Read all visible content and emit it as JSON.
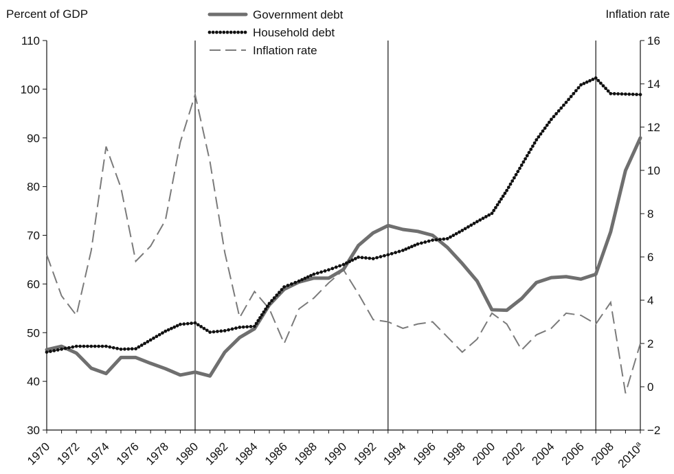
{
  "chart_data": {
    "type": "line",
    "title": "",
    "left_axis": {
      "title": "Percent of GDP",
      "range": [
        30,
        110
      ],
      "ticks": [
        "30",
        "40",
        "50",
        "60",
        "70",
        "80",
        "90",
        "100",
        "110"
      ]
    },
    "right_axis": {
      "title": "Inflation rate",
      "range": [
        -2,
        16
      ],
      "ticks": [
        "−2",
        "0",
        "2",
        "4",
        "6",
        "8",
        "10",
        "12",
        "14",
        "16"
      ]
    },
    "x_range": [
      1970,
      2010
    ],
    "x_ticks": [
      {
        "year": 1970,
        "label": "1970"
      },
      {
        "year": 1972,
        "label": "1972"
      },
      {
        "year": 1974,
        "label": "1974"
      },
      {
        "year": 1976,
        "label": "1976"
      },
      {
        "year": 1978,
        "label": "1978"
      },
      {
        "year": 1980,
        "label": "1980"
      },
      {
        "year": 1982,
        "label": "1982"
      },
      {
        "year": 1984,
        "label": "1984"
      },
      {
        "year": 1986,
        "label": "1986"
      },
      {
        "year": 1988,
        "label": "1988"
      },
      {
        "year": 1990,
        "label": "1990"
      },
      {
        "year": 1992,
        "label": "1992"
      },
      {
        "year": 1994,
        "label": "1994"
      },
      {
        "year": 1996,
        "label": "1996"
      },
      {
        "year": 1998,
        "label": "1998"
      },
      {
        "year": 2000,
        "label": "2000"
      },
      {
        "year": 2002,
        "label": "2002"
      },
      {
        "year": 2004,
        "label": "2004"
      },
      {
        "year": 2006,
        "label": "2006"
      },
      {
        "year": 2008,
        "label": "2008"
      },
      {
        "year": 2010,
        "label": "2010",
        "superscript": "a"
      }
    ],
    "vertical_lines": [
      1980,
      1993,
      2007
    ],
    "legend_position": "top-center",
    "grid": false,
    "series": [
      {
        "name": "Government debt",
        "axis": "left",
        "style": "thick-solid",
        "color": "#6f6f6f",
        "x": [
          1970,
          1971,
          1972,
          1973,
          1974,
          1975,
          1976,
          1977,
          1978,
          1979,
          1980,
          1981,
          1982,
          1983,
          1984,
          1985,
          1986,
          1987,
          1988,
          1989,
          1990,
          1991,
          1992,
          1993,
          1994,
          1995,
          1996,
          1997,
          1998,
          1999,
          2000,
          2001,
          2002,
          2003,
          2004,
          2005,
          2006,
          2007,
          2008,
          2009,
          2010
        ],
        "values": [
          46.5,
          47.2,
          45.8,
          42.7,
          41.6,
          44.9,
          44.9,
          43.7,
          42.6,
          41.3,
          41.9,
          41.1,
          46.0,
          49.0,
          50.8,
          55.7,
          58.9,
          60.4,
          61.2,
          61.2,
          63.0,
          67.9,
          70.5,
          72.0,
          71.2,
          70.8,
          70.0,
          67.5,
          64.2,
          60.6,
          54.7,
          54.6,
          57.0,
          60.3,
          61.3,
          61.5,
          61.0,
          62.0,
          70.7,
          83.3,
          90.0
        ]
      },
      {
        "name": "Household debt",
        "axis": "left",
        "style": "dotted",
        "color": "#111111",
        "x": [
          1970,
          1971,
          1972,
          1973,
          1974,
          1975,
          1976,
          1977,
          1978,
          1979,
          1980,
          1981,
          1982,
          1983,
          1984,
          1985,
          1986,
          1987,
          1988,
          1989,
          1990,
          1991,
          1992,
          1993,
          1994,
          1995,
          1996,
          1997,
          1998,
          1999,
          2000,
          2001,
          2002,
          2003,
          2004,
          2005,
          2006,
          2007,
          2008,
          2009,
          2010
        ],
        "values": [
          46.0,
          46.6,
          47.2,
          47.2,
          47.2,
          46.6,
          46.7,
          48.5,
          50.3,
          51.7,
          52.0,
          50.1,
          50.4,
          51.1,
          51.3,
          56.0,
          59.4,
          60.6,
          62.0,
          62.9,
          64.0,
          65.5,
          65.2,
          66.0,
          66.9,
          68.2,
          69.0,
          69.3,
          71.0,
          72.8,
          74.5,
          79.2,
          84.4,
          89.6,
          93.8,
          97.3,
          100.9,
          102.3,
          99.1,
          99.0,
          98.9
        ]
      },
      {
        "name": "Inflation rate",
        "axis": "right",
        "style": "dashed",
        "color": "#7a7a7a",
        "x": [
          1970,
          1971,
          1972,
          1973,
          1974,
          1975,
          1976,
          1977,
          1978,
          1979,
          1980,
          1981,
          1982,
          1983,
          1984,
          1985,
          1986,
          1987,
          1988,
          1989,
          1990,
          1991,
          1992,
          1993,
          1994,
          1995,
          1996,
          1997,
          1998,
          1999,
          2000,
          2001,
          2002,
          2003,
          2004,
          2005,
          2006,
          2007,
          2008,
          2009,
          2010
        ],
        "values": [
          6.1,
          4.2,
          3.3,
          6.3,
          11.1,
          9.2,
          5.8,
          6.5,
          7.7,
          11.3,
          13.5,
          10.4,
          6.2,
          3.2,
          4.4,
          3.6,
          2.0,
          3.6,
          4.1,
          4.8,
          5.4,
          4.3,
          3.1,
          3.0,
          2.7,
          2.9,
          3.0,
          2.3,
          1.6,
          2.2,
          3.4,
          2.9,
          1.7,
          2.4,
          2.7,
          3.4,
          3.3,
          2.9,
          3.9,
          -0.3,
          2.0
        ]
      }
    ]
  }
}
